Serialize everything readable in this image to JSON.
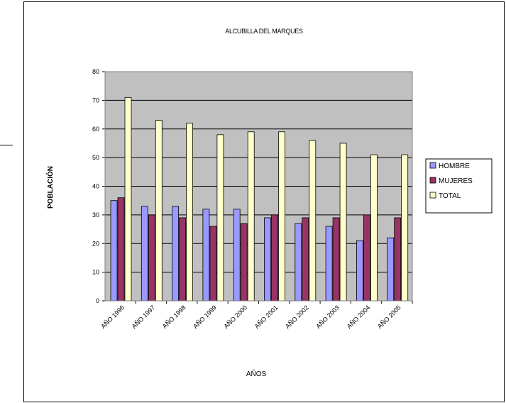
{
  "chart_data": {
    "type": "bar",
    "title": "ALCUBILLA DEL MARQUES",
    "xlabel": "AÑOS",
    "ylabel": "POBLACIÓN",
    "ylim": [
      0,
      80
    ],
    "yticks": [
      0,
      10,
      20,
      30,
      40,
      50,
      60,
      70,
      80
    ],
    "grid": true,
    "legend_position": "right",
    "categories": [
      "AÑO 1996",
      "AÑO 1997",
      "AÑO 1998",
      "AÑO 1999",
      "AÑO 2000",
      "AÑO 2001",
      "AÑO 2002",
      "AÑO 2003",
      "AÑO 2004",
      "AÑO 2005"
    ],
    "series": [
      {
        "name": "HOMBRE",
        "color": "#9999FF",
        "values": [
          35,
          33,
          33,
          32,
          32,
          29,
          27,
          26,
          21,
          22
        ]
      },
      {
        "name": "MUJERES",
        "color": "#993366",
        "values": [
          36,
          30,
          29,
          26,
          27,
          30,
          29,
          29,
          30,
          29
        ]
      },
      {
        "name": "TOTAL",
        "color": "#FFFFCC",
        "values": [
          71,
          63,
          62,
          58,
          59,
          59,
          56,
          55,
          51,
          51
        ]
      }
    ],
    "plot_background": "#C0C0C0"
  }
}
